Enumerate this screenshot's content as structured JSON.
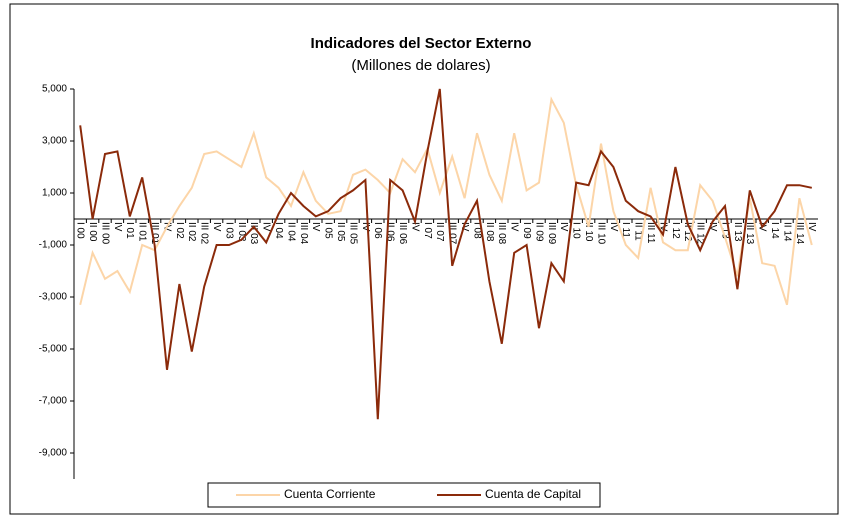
{
  "chart_data": {
    "type": "line",
    "title": "Indicadores del Sector Externo",
    "subtitle": "(Millones de dolares)",
    "categories": [
      "I 00",
      "II 00",
      "III 00",
      "IV",
      "I 01",
      "II 01",
      "III 01",
      "IV",
      "I 02",
      "II 02",
      "III 02",
      "IV",
      "I 03",
      "II 03",
      "III 03",
      "IV",
      "I 04",
      "II 04",
      "III 04",
      "IV",
      "I 05",
      "II 05",
      "III 05",
      "IV",
      "I 06",
      "II 06",
      "III 06",
      "IV",
      "I 07",
      "II 07",
      "III 07",
      "IV",
      "I 08",
      "II 08",
      "III 08",
      "IV",
      "I 09",
      "II 09",
      "III 09",
      "IV",
      "I 10",
      "II 10",
      "III 10",
      "IV",
      "I 11",
      "II 11",
      "III 11",
      "IV",
      "I 12",
      "II 12",
      "III 12",
      "IV",
      "I 13",
      "II 13",
      "III 13",
      "IV",
      "I 14",
      "II 14",
      "III 14",
      "IV"
    ],
    "series": [
      {
        "name": "Cuenta Corriente",
        "color": "#fcd5a8",
        "values": [
          -3300,
          -1300,
          -2300,
          -2000,
          -2800,
          -1000,
          -1200,
          -300,
          500,
          1200,
          2500,
          2600,
          2300,
          2000,
          3300,
          1600,
          1200,
          500,
          1800,
          700,
          200,
          300,
          1700,
          1900,
          1500,
          1000,
          2300,
          1800,
          2700,
          1000,
          2400,
          800,
          3300,
          1700,
          700,
          3300,
          1100,
          1400,
          4600,
          3700,
          1300,
          -300,
          2900,
          300,
          -1000,
          -1500,
          1200,
          -900,
          -1200,
          -1200,
          1300,
          700,
          -700,
          -2200,
          800,
          -1700,
          -1800,
          -3300,
          800,
          -1000
        ]
      },
      {
        "name": "Cuenta de Capital",
        "color": "#8b2a0a",
        "values": [
          3600,
          0,
          2500,
          2600,
          100,
          1600,
          -1000,
          -5800,
          -2500,
          -5100,
          -2600,
          -1000,
          -1000,
          -800,
          -300,
          -900,
          200,
          1000,
          500,
          100,
          300,
          800,
          1100,
          1500,
          -7700,
          1500,
          1100,
          -100,
          2600,
          5000,
          -1800,
          -200,
          700,
          -2400,
          -4800,
          -1300,
          -1000,
          -4200,
          -1700,
          -2400,
          1400,
          1300,
          2600,
          2000,
          700,
          300,
          100,
          -600,
          2000,
          -200,
          -1200,
          -100,
          500,
          -2700,
          1100,
          -300,
          300,
          1300,
          1300,
          1200
        ]
      }
    ],
    "ylim": [
      -10000,
      5000
    ],
    "yticks": [
      {
        "value": -9000,
        "label": "-9,000"
      },
      {
        "value": -7000,
        "label": "-7,000"
      },
      {
        "value": -5000,
        "label": "-5,000"
      },
      {
        "value": -3000,
        "label": "-3,000"
      },
      {
        "value": -1000,
        "label": "-1,000"
      },
      {
        "value": 1000,
        "label": "1,000"
      },
      {
        "value": 3000,
        "label": "3,000"
      },
      {
        "value": 5000,
        "label": "5,000"
      }
    ]
  }
}
